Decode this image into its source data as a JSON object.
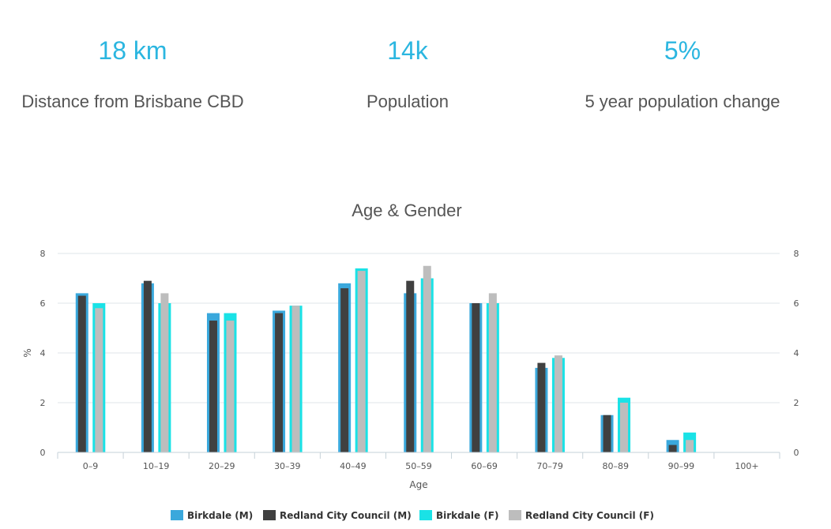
{
  "stats": [
    {
      "value": "18 km",
      "label": "Distance from Brisbane CBD"
    },
    {
      "value": "14k",
      "label": "Population"
    },
    {
      "value": "5%",
      "label": "5 year population change"
    }
  ],
  "colors": {
    "stat_value": "#2bb6e0",
    "grid": "#dfe6e9"
  },
  "chart_data": {
    "type": "bar",
    "title": "Age & Gender",
    "xlabel": "Age",
    "ylabel": "%",
    "ylim": [
      0,
      8
    ],
    "yticks": [
      0,
      2,
      4,
      6,
      8
    ],
    "right_axis": true,
    "grid": true,
    "legend_position": "bottom-center",
    "categories": [
      "0–9",
      "10–19",
      "20–29",
      "30–39",
      "40–49",
      "50–59",
      "60–69",
      "70–79",
      "80–89",
      "90–99",
      "100+"
    ],
    "series": [
      {
        "name": "Birkdale (M)",
        "color": "#3aa8dc",
        "values": [
          6.4,
          6.8,
          5.6,
          5.7,
          6.8,
          6.4,
          6.0,
          3.4,
          1.5,
          0.5,
          0
        ]
      },
      {
        "name": "Redland City Council (M)",
        "color": "#404040",
        "values": [
          6.3,
          6.9,
          5.3,
          5.6,
          6.6,
          6.9,
          6.0,
          3.6,
          1.5,
          0.3,
          0
        ]
      },
      {
        "name": "Birkdale (F)",
        "color": "#1ae2e6",
        "values": [
          6.0,
          6.0,
          5.6,
          5.9,
          7.4,
          7.0,
          6.0,
          3.8,
          2.2,
          0.8,
          0
        ]
      },
      {
        "name": "Redland City Council (F)",
        "color": "#bdbdbd",
        "values": [
          5.8,
          6.4,
          5.3,
          5.9,
          7.3,
          7.5,
          6.4,
          3.9,
          2.0,
          0.5,
          0
        ]
      }
    ]
  }
}
